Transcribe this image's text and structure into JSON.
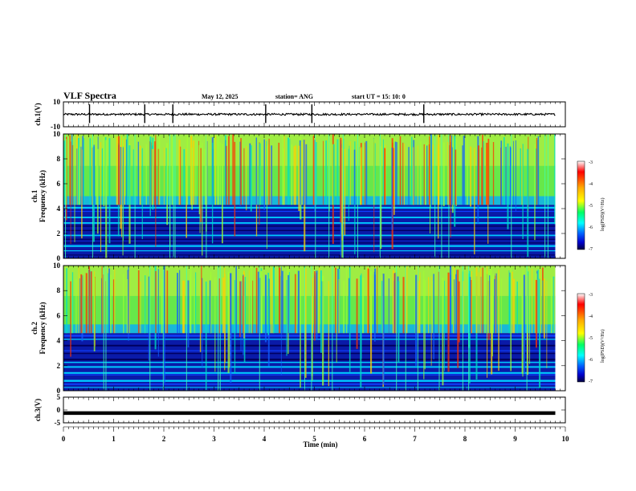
{
  "header": {
    "title": "VLF Spectra",
    "date": "May 12, 2025",
    "station": "station= ANG",
    "start": "start  UT  =   15: 10: 0"
  },
  "colorbar": {
    "label": "log(PSD)(V²/Hz)",
    "ticks": [
      "-3",
      "-4",
      "-5",
      "-6",
      "-7"
    ],
    "colors": [
      "#ff0000",
      "#ff8000",
      "#ffff00",
      "#00ff00",
      "#00ffff",
      "#0080ff",
      "#0000ff",
      "#000080"
    ]
  },
  "chart_data": [
    {
      "type": "line",
      "panel": "ch1-waveform",
      "ylabel": "ch.1(V)",
      "ylim": [
        -10,
        10
      ],
      "yticks": [
        "10",
        "-10"
      ],
      "xlim": [
        0,
        10
      ],
      "baseline": 0,
      "spikes_min": [
        0.52,
        1.62,
        2.18,
        4.03,
        4.95,
        7.18
      ],
      "color": "#000000"
    },
    {
      "type": "heatmap",
      "panel": "ch1-spectrogram",
      "ylabel": "ch.1\nFrequency (kHz)",
      "ylim": [
        0,
        10
      ],
      "yticks": [
        "0",
        "2",
        "4",
        "6",
        "8",
        "10"
      ],
      "xlim": [
        0,
        10
      ],
      "data_end_min": 9.8,
      "strong_band_kHz": [
        4.3,
        10
      ],
      "quiet_band_kHz": [
        0,
        4.3
      ],
      "zlim": [
        -7,
        -3
      ]
    },
    {
      "type": "heatmap",
      "panel": "ch2-spectrogram",
      "ylabel": "ch.2\nFrequency (kHz)",
      "ylim": [
        0,
        10
      ],
      "yticks": [
        "0",
        "2",
        "4",
        "6",
        "8",
        "10"
      ],
      "xlim": [
        0,
        10
      ],
      "data_end_min": 9.8,
      "strong_band_kHz": [
        4.6,
        10
      ],
      "quiet_band_kHz": [
        0,
        4.6
      ],
      "zlim": [
        -7,
        -3
      ]
    },
    {
      "type": "line",
      "panel": "ch3-waveform",
      "ylabel": "ch.3(V)",
      "ylim": [
        -5,
        5
      ],
      "yticks": [
        "5",
        "0",
        "-5"
      ],
      "xlim": [
        0,
        10
      ],
      "value": -1.2,
      "color": "#000000"
    }
  ],
  "xaxis": {
    "label": "Time (min)",
    "ticks": [
      "0",
      "1",
      "2",
      "3",
      "4",
      "5",
      "6",
      "7",
      "8",
      "9",
      "10"
    ]
  }
}
